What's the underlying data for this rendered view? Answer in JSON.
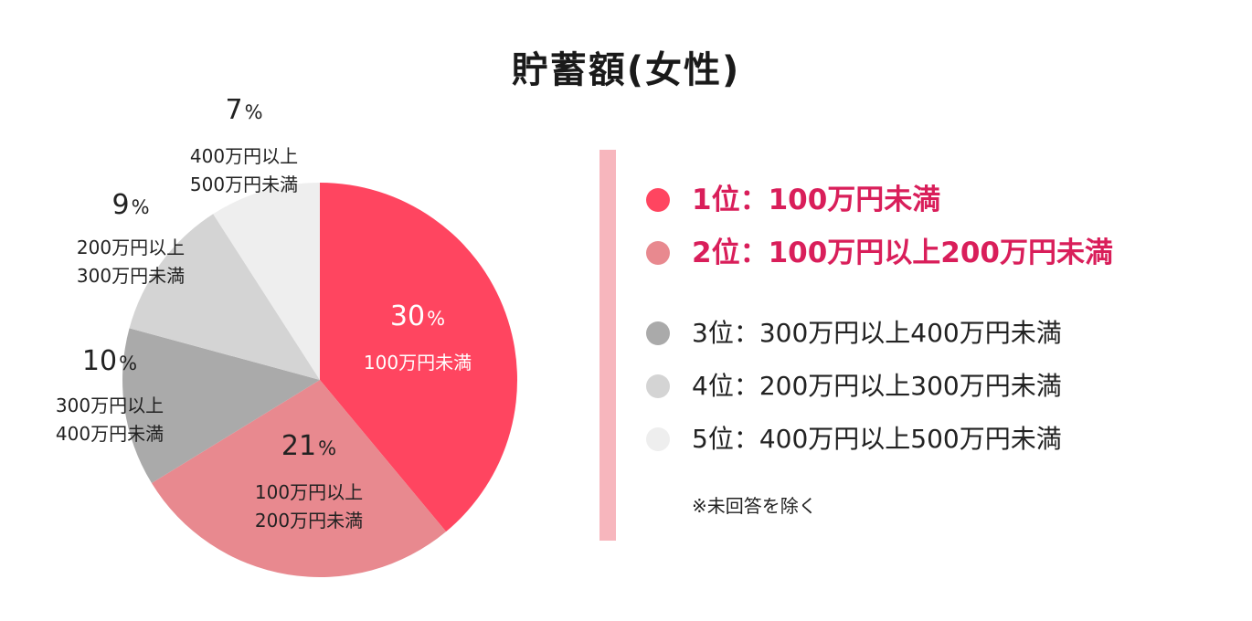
{
  "chart_data": {
    "type": "pie",
    "title": "貯蓄額(女性)",
    "slices": [
      {
        "label_line1": "100万円未満",
        "label_line2": "",
        "value": 30,
        "pct_text": "30",
        "color": "#ff4560"
      },
      {
        "label_line1": "100万円以上",
        "label_line2": "200万円未満",
        "value": 21,
        "pct_text": "21",
        "color": "#e8898f"
      },
      {
        "label_line1": "300万円以上",
        "label_line2": "400万円未満",
        "value": 10,
        "pct_text": "10",
        "color": "#aaaaaa"
      },
      {
        "label_line1": "200万円以上",
        "label_line2": "300万円未満",
        "value": 9,
        "pct_text": "9",
        "color": "#d4d4d4"
      },
      {
        "label_line1": "400万円以上",
        "label_line2": "500万円未満",
        "value": 7,
        "pct_text": "7",
        "color": "#eeeeee"
      }
    ],
    "percent_sign": "%"
  },
  "legend": {
    "items": [
      {
        "text": "1位：100万円未満",
        "color": "#ff4560",
        "text_color": "#d91e5a",
        "emphasis": true
      },
      {
        "text": "2位：100万円以上200万円未満",
        "color": "#e8898f",
        "text_color": "#d91e5a",
        "emphasis": true
      },
      {
        "text": "3位：300万円以上400万円未満",
        "color": "#aaaaaa",
        "text_color": "#222222",
        "emphasis": false
      },
      {
        "text": "4位：200万円以上300万円未満",
        "color": "#d4d4d4",
        "text_color": "#222222",
        "emphasis": false
      },
      {
        "text": "5位：400万円以上500万円未満",
        "color": "#eeeeee",
        "text_color": "#222222",
        "emphasis": false
      }
    ],
    "footnote": "※未回答を除く"
  }
}
